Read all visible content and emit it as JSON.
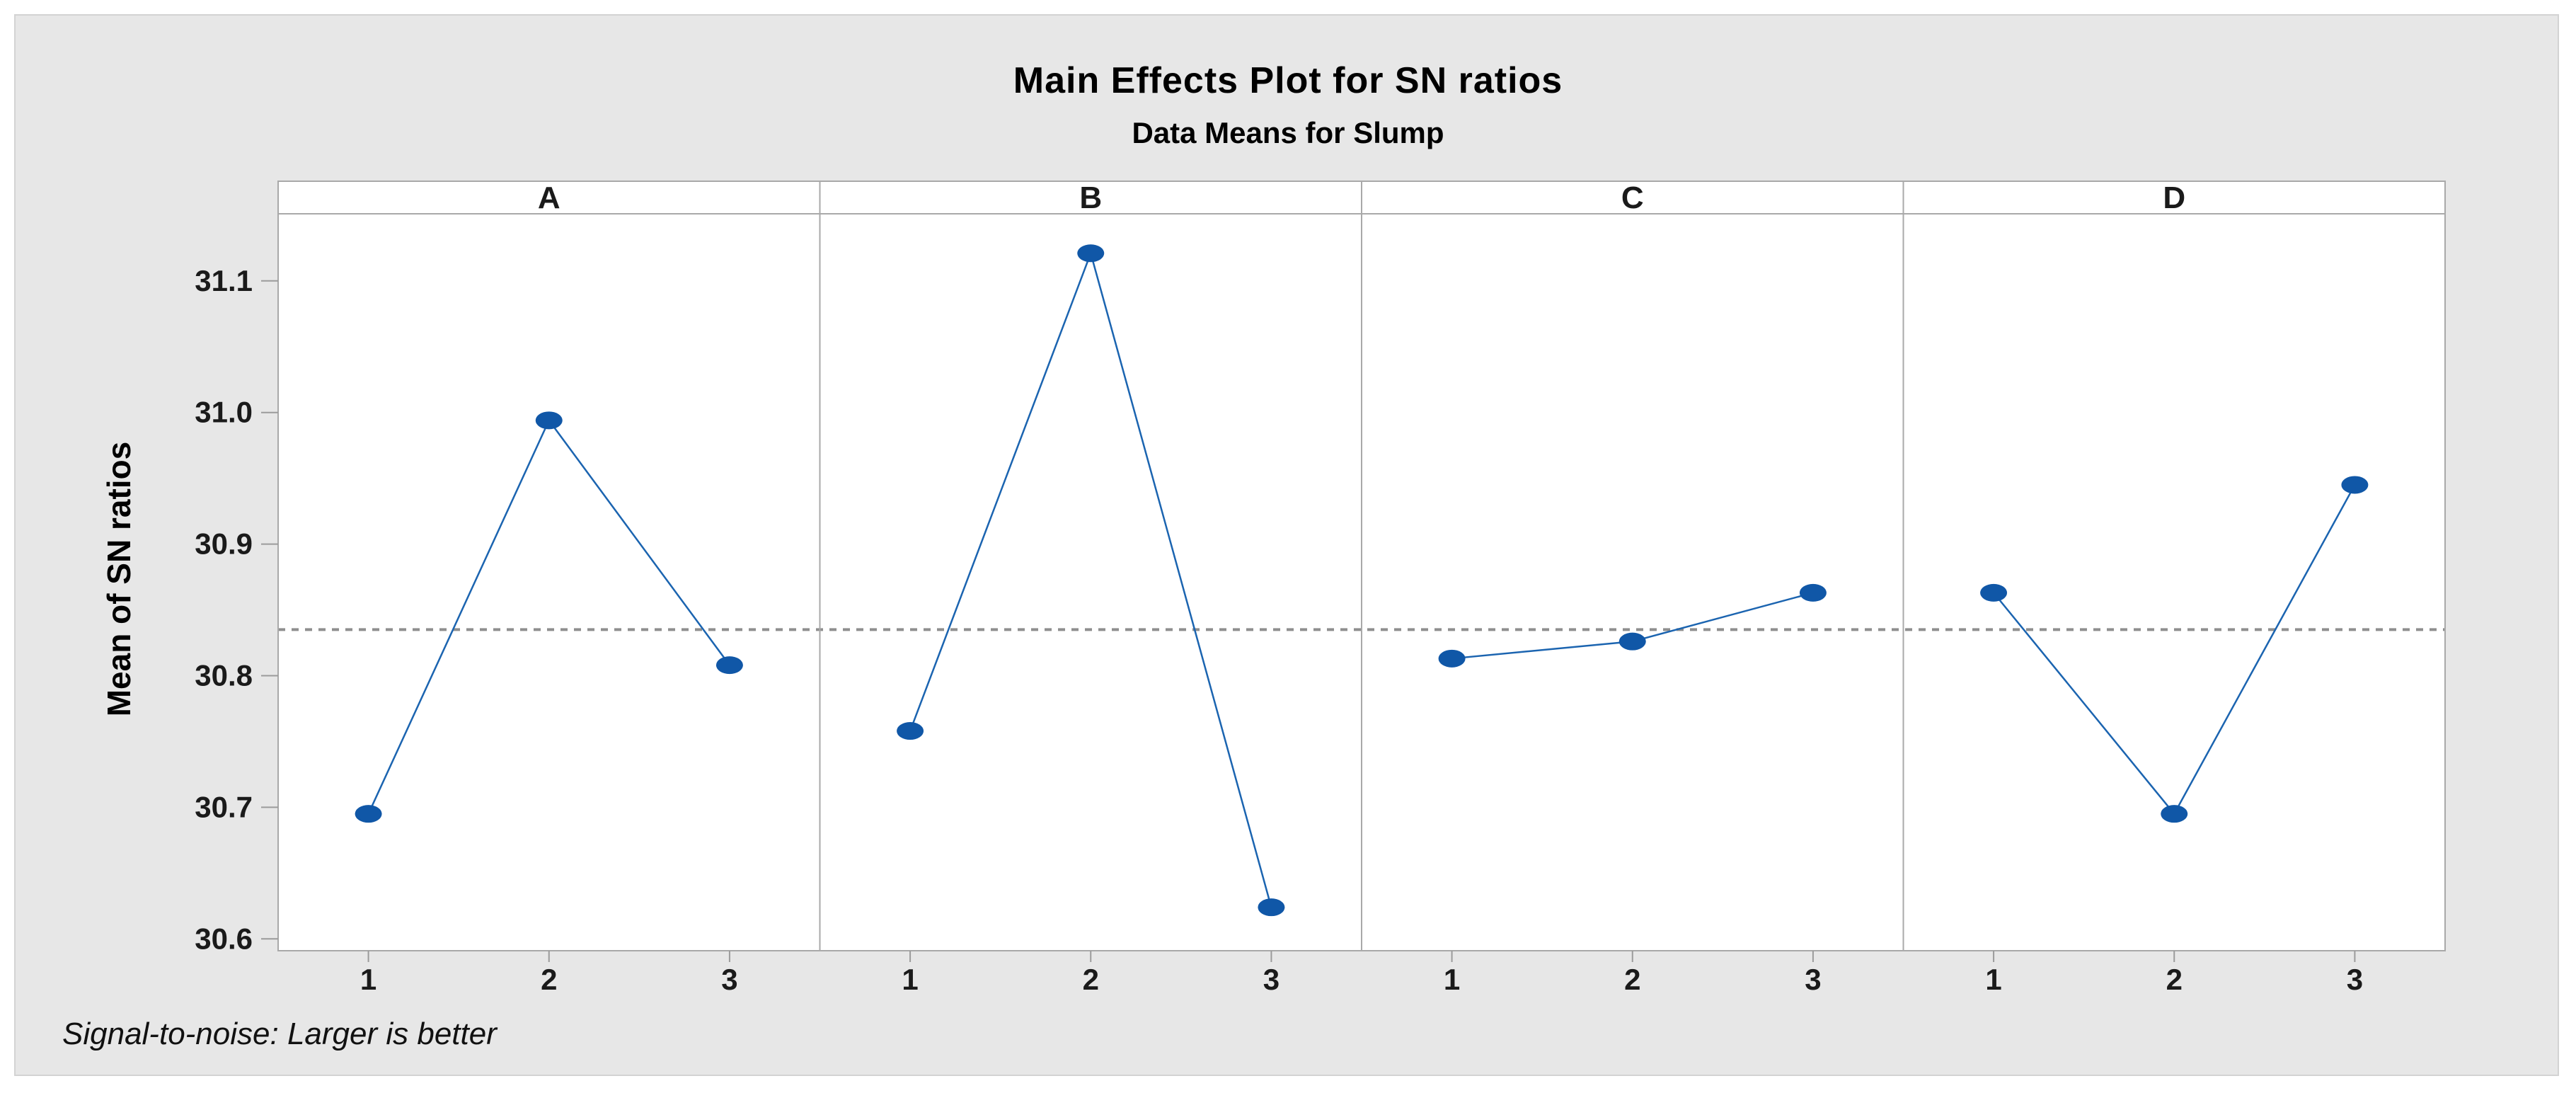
{
  "page": {
    "title": "Main Effects Plot for SN ratios",
    "subtitle": "Data Means for Slump",
    "y_axis_label": "Mean of SN ratios",
    "footnote": "Signal-to-noise: Larger is better"
  },
  "chart_data": {
    "type": "line",
    "title": "Main Effects Plot for SN ratios",
    "subtitle": "Data Means for Slump",
    "ylabel": "Mean of SN ratios",
    "footnote": "Signal-to-noise: Larger is better",
    "panels": [
      {
        "label": "A",
        "x": [
          1,
          2,
          3
        ],
        "values": [
          30.695,
          30.994,
          30.808
        ]
      },
      {
        "label": "B",
        "x": [
          1,
          2,
          3
        ],
        "values": [
          30.758,
          31.121,
          30.624
        ]
      },
      {
        "label": "C",
        "x": [
          1,
          2,
          3
        ],
        "values": [
          30.813,
          30.826,
          30.863
        ]
      },
      {
        "label": "D",
        "x": [
          1,
          2,
          3
        ],
        "values": [
          30.863,
          30.695,
          30.945
        ]
      }
    ],
    "x_tick_labels": [
      "1",
      "2",
      "3"
    ],
    "y_ticks": [
      30.6,
      30.7,
      30.8,
      30.9,
      31.0,
      31.1
    ],
    "y_tick_labels": [
      "30.6",
      "30.7",
      "30.8",
      "30.9",
      "31.0",
      "31.1"
    ],
    "ylim": [
      30.591,
      31.151
    ],
    "xlim_per_panel": [
      0.5,
      3.5
    ],
    "reference_line": 30.835,
    "grid": false,
    "legend": "none",
    "colors": {
      "marker": "#1057a7",
      "line": "#1b64b0",
      "reference": "#8f8f8f",
      "frame": "#a9a9a9",
      "tick": "#9b9b9b",
      "text": "#1a1a1a",
      "panel_bg": "#ffffff",
      "card_bg": "#e7e7e7"
    }
  }
}
